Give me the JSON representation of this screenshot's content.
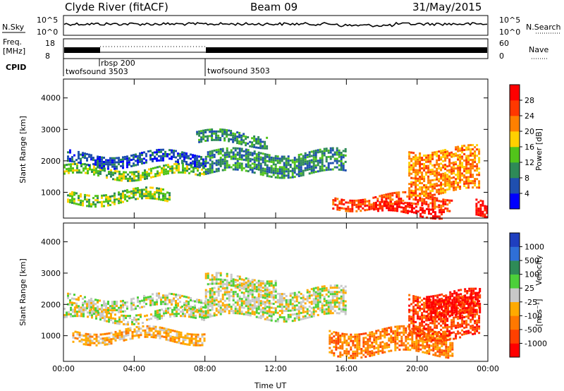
{
  "header": {
    "station": "Clyde River (fitACF)",
    "beam": "Beam 09",
    "date": "31/May/2015"
  },
  "strips": {
    "nsky_label": "N.Sky",
    "freq_label_1": "Freq.",
    "freq_label_2": "[MHz]",
    "cpid_label": "CPID",
    "nsearch_label": "N.Search",
    "nave_label": "Nave",
    "nsky_ticks": [
      "10^5",
      "10^0"
    ],
    "nsearch_ticks": [
      "10^5",
      "10^0"
    ],
    "freq_ticks": [
      "18",
      "8"
    ],
    "nave_ticks": [
      "60",
      "0"
    ],
    "cpid_segments": [
      {
        "start_h": 0.0,
        "end_h": 8.0,
        "label": "twofsound 3503"
      },
      {
        "start_h": 2.0,
        "end_h": 8.0,
        "label": "rbsp 200"
      },
      {
        "start_h": 8.0,
        "end_h": 24.0,
        "label": "twofsound 3503"
      }
    ]
  },
  "panels": {
    "ylabel": "Slant Range [km]",
    "xlabel": "Time UT",
    "power_label": "Power [dB]",
    "velocity_label": "Velocity",
    "velocity_unit": "[m s⁻¹]"
  },
  "chart_data": {
    "type": "heatmap",
    "x_range_hours": [
      0,
      24
    ],
    "x_tick_labels": [
      "00:00",
      "04:00",
      "08:00",
      "12:00",
      "16:00",
      "20:00",
      "00:00"
    ],
    "x_tick_hours": [
      0,
      4,
      8,
      12,
      16,
      20,
      24
    ],
    "y_range_km": [
      180,
      4600
    ],
    "y_tick_values": [
      1000,
      2000,
      3000,
      4000
    ],
    "y_tick_labels": [
      "1000",
      "2000",
      "3000",
      "4000"
    ],
    "power_scale": {
      "ticks": [
        "28",
        "24",
        "20",
        "16",
        "12",
        "8",
        "4"
      ],
      "colors": [
        "#0000ff",
        "#1f4faf",
        "#2e8a57",
        "#52c41a",
        "#ffd000",
        "#ff8000",
        "#ff3800",
        "#ff0000"
      ]
    },
    "velocity_scale": {
      "ticks": [
        "1000",
        "500",
        "100",
        "25",
        "-25",
        "-100",
        "-500",
        "-1000"
      ],
      "colors": [
        "#1f3fbf",
        "#2f6fd7",
        "#2e8b57",
        "#4cd03a",
        "#c8c8c8",
        "#ffaa00",
        "#ff7800",
        "#ff4000",
        "#ff0000"
      ]
    },
    "power_bands": [
      {
        "t0": 0.0,
        "t1": 8.0,
        "r0": 1500,
        "r1": 1800,
        "level": 3
      },
      {
        "t0": 0.2,
        "t1": 8.0,
        "r0": 1900,
        "r1": 2250,
        "level": 1
      },
      {
        "t0": 0.2,
        "t1": 6.0,
        "r0": 700,
        "r1": 1050,
        "level": 3
      },
      {
        "t0": 8.0,
        "t1": 16.0,
        "r0": 1600,
        "r1": 2300,
        "level": 2
      },
      {
        "t0": 7.5,
        "t1": 11.5,
        "r0": 2500,
        "r1": 2900,
        "level": 2
      },
      {
        "t0": 15.2,
        "t1": 22.0,
        "r0": 500,
        "r1": 900,
        "level": 6
      },
      {
        "t0": 17.5,
        "t1": 21.5,
        "r0": 280,
        "r1": 600,
        "level": 7
      },
      {
        "t0": 19.5,
        "t1": 23.5,
        "r0": 1000,
        "r1": 2400,
        "level": 5
      },
      {
        "t0": 23.3,
        "t1": 24.0,
        "r0": 250,
        "r1": 750,
        "level": 7
      }
    ],
    "velocity_bands": [
      {
        "t0": 0.0,
        "t1": 8.0,
        "r0": 1500,
        "r1": 1800,
        "level": 4
      },
      {
        "t0": 0.2,
        "t1": 8.0,
        "r0": 1900,
        "r1": 2250,
        "level": 4
      },
      {
        "t0": 0.5,
        "t1": 8.0,
        "r0": 800,
        "r1": 1200,
        "level": 5
      },
      {
        "t0": 8.0,
        "t1": 16.0,
        "r0": 1600,
        "r1": 2500,
        "level": 4
      },
      {
        "t0": 8.0,
        "t1": 12.0,
        "r0": 2500,
        "r1": 2900,
        "level": 4
      },
      {
        "t0": 15.0,
        "t1": 22.0,
        "r0": 400,
        "r1": 1200,
        "level": 6
      },
      {
        "t0": 19.5,
        "t1": 23.5,
        "r0": 1000,
        "r1": 2300,
        "level": 7
      },
      {
        "t0": 20.5,
        "t1": 23.5,
        "r0": 1600,
        "r1": 2400,
        "level": 8
      }
    ]
  }
}
